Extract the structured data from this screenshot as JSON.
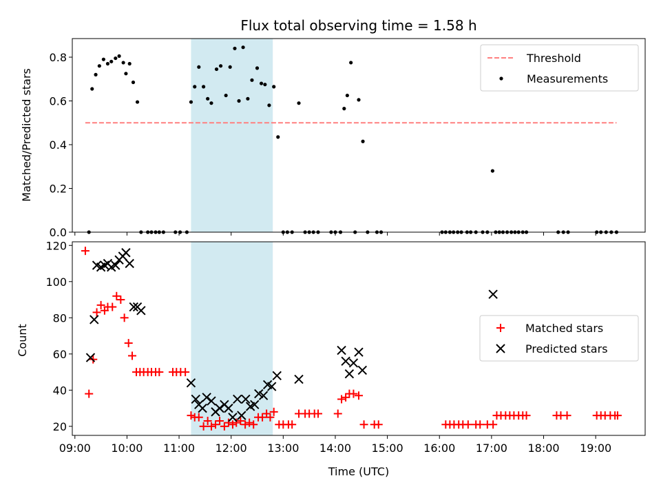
{
  "chart_data": [
    {
      "type": "scatter",
      "title": "Flux total observing time = 1.58 h",
      "xlabel": "",
      "ylabel": "Matched/Predicted stars",
      "xlim": [
        8.95,
        19.95
      ],
      "ylim": [
        0.0,
        0.885
      ],
      "yticks": [
        0.0,
        0.2,
        0.4,
        0.6,
        0.8
      ],
      "ytick_labels": [
        "0.0",
        "0.2",
        "0.4",
        "0.6",
        "0.8"
      ],
      "xticks": [
        9,
        10,
        11,
        12,
        13,
        14,
        15,
        16,
        17,
        18,
        19
      ],
      "shaded_span": {
        "x0": 11.23,
        "x1": 12.8,
        "color": "#add8e6"
      },
      "legend": {
        "placement": "upper right",
        "entries": [
          "Threshold",
          "Measurements"
        ]
      },
      "threshold": {
        "name": "Threshold",
        "y": 0.5,
        "x_range": [
          9.2,
          19.4
        ],
        "color": "#ff7f7f",
        "style": "dashed"
      },
      "series": [
        {
          "name": "Measurements",
          "color": "#000000",
          "marker": "dot",
          "x": [
            9.27,
            9.33,
            9.4,
            9.47,
            9.55,
            9.63,
            9.7,
            9.78,
            9.85,
            9.93,
            9.98,
            10.05,
            10.12,
            10.2,
            10.27,
            10.4,
            10.47,
            10.55,
            10.62,
            10.7,
            10.93,
            11.02,
            11.15,
            11.23,
            11.3,
            11.38,
            11.47,
            11.55,
            11.62,
            11.72,
            11.8,
            11.9,
            11.98,
            12.07,
            12.15,
            12.23,
            12.32,
            12.4,
            12.5,
            12.58,
            12.65,
            12.73,
            12.82,
            12.9,
            13.0,
            13.08,
            13.17,
            13.3,
            13.42,
            13.5,
            13.58,
            13.67,
            13.92,
            14.0,
            14.1,
            14.17,
            14.23,
            14.3,
            14.38,
            14.45,
            14.53,
            14.62,
            14.8,
            14.88,
            16.05,
            16.12,
            16.2,
            16.27,
            16.35,
            16.42,
            16.53,
            16.6,
            16.7,
            16.83,
            16.92,
            17.02,
            17.08,
            17.15,
            17.22,
            17.3,
            17.38,
            17.45,
            17.52,
            17.6,
            17.67,
            18.28,
            18.38,
            18.47,
            19.02,
            19.1,
            19.2,
            19.3,
            19.4
          ],
          "y": [
            0.0,
            0.655,
            0.72,
            0.76,
            0.79,
            0.77,
            0.78,
            0.795,
            0.805,
            0.775,
            0.725,
            0.77,
            0.685,
            0.595,
            0.0,
            0.0,
            0.0,
            0.0,
            0.0,
            0.0,
            0.0,
            0.0,
            0.0,
            0.595,
            0.665,
            0.755,
            0.665,
            0.61,
            0.59,
            0.745,
            0.76,
            0.625,
            0.755,
            0.84,
            0.6,
            0.845,
            0.61,
            0.695,
            0.75,
            0.68,
            0.675,
            0.58,
            0.665,
            0.435,
            0.0,
            0.0,
            0.0,
            0.59,
            0.0,
            0.0,
            0.0,
            0.0,
            0.0,
            0.0,
            0.0,
            0.565,
            0.625,
            0.775,
            0.0,
            0.605,
            0.415,
            0.0,
            0.0,
            0.0,
            0.0,
            0.0,
            0.0,
            0.0,
            0.0,
            0.0,
            0.0,
            0.0,
            0.0,
            0.0,
            0.0,
            0.28,
            0.0,
            0.0,
            0.0,
            0.0,
            0.0,
            0.0,
            0.0,
            0.0,
            0.0,
            0.0,
            0.0,
            0.0,
            0.0,
            0.0,
            0.0,
            0.0,
            0.0
          ]
        }
      ]
    },
    {
      "type": "scatter",
      "title": "",
      "xlabel": "Time (UTC)",
      "ylabel": "Count",
      "xlim": [
        8.95,
        19.95
      ],
      "ylim": [
        15,
        122
      ],
      "yticks": [
        20,
        40,
        60,
        80,
        100,
        120
      ],
      "ytick_labels": [
        "20",
        "40",
        "60",
        "80",
        "100",
        "120"
      ],
      "xticks": [
        9,
        10,
        11,
        12,
        13,
        14,
        15,
        16,
        17,
        18,
        19
      ],
      "xtick_labels": [
        "09:00",
        "10:00",
        "11:00",
        "12:00",
        "13:00",
        "14:00",
        "15:00",
        "16:00",
        "17:00",
        "18:00",
        "19:00"
      ],
      "shaded_span": {
        "x0": 11.23,
        "x1": 12.8,
        "color": "#add8e6"
      },
      "legend": {
        "placement": "center right",
        "entries": [
          "Matched stars",
          "Predicted stars"
        ]
      },
      "series": [
        {
          "name": "Matched stars",
          "color": "#ff0000",
          "marker": "plus",
          "x": [
            9.2,
            9.27,
            9.35,
            9.42,
            9.5,
            9.57,
            9.63,
            9.72,
            9.8,
            9.88,
            9.95,
            10.03,
            10.1,
            10.18,
            10.25,
            10.32,
            10.4,
            10.47,
            10.55,
            10.62,
            10.88,
            10.95,
            11.03,
            11.12,
            11.23,
            11.3,
            11.38,
            11.47,
            11.55,
            11.62,
            11.7,
            11.78,
            11.87,
            11.95,
            12.03,
            12.1,
            12.18,
            12.27,
            12.35,
            12.43,
            12.52,
            12.6,
            12.68,
            12.75,
            12.82,
            12.92,
            13.0,
            13.1,
            13.17,
            13.3,
            13.42,
            13.5,
            13.6,
            13.67,
            14.05,
            14.12,
            14.2,
            14.27,
            14.35,
            14.45,
            14.55,
            14.75,
            14.83,
            16.12,
            16.2,
            16.28,
            16.37,
            16.45,
            16.55,
            16.7,
            16.78,
            16.92,
            17.03,
            17.1,
            17.18,
            17.27,
            17.35,
            17.43,
            17.52,
            17.6,
            17.67,
            18.25,
            18.33,
            18.45,
            19.02,
            19.1,
            19.18,
            19.28,
            19.37,
            19.42
          ],
          "y": [
            117,
            38,
            57,
            83,
            87,
            84,
            86,
            86,
            92,
            90,
            80,
            66,
            59,
            50,
            50,
            50,
            50,
            50,
            50,
            50,
            50,
            50,
            50,
            50,
            26,
            25,
            25,
            20,
            23,
            20,
            21,
            23,
            20,
            22,
            21,
            22,
            23,
            21,
            22,
            21,
            25,
            25,
            27,
            25,
            28,
            21,
            21,
            21,
            21,
            27,
            27,
            27,
            27,
            27,
            27,
            35,
            36,
            38,
            38,
            37,
            21,
            21,
            21,
            21,
            21,
            21,
            21,
            21,
            21,
            21,
            21,
            21,
            21,
            26,
            26,
            26,
            26,
            26,
            26,
            26,
            26,
            26,
            26,
            26,
            26,
            26,
            26,
            26,
            26,
            26
          ]
        },
        {
          "name": "Predicted stars",
          "color": "#000000",
          "marker": "x",
          "x": [
            9.3,
            9.37,
            9.42,
            9.5,
            9.57,
            9.63,
            9.7,
            9.78,
            9.85,
            9.92,
            9.98,
            10.05,
            10.13,
            10.2,
            10.27,
            11.23,
            11.32,
            11.38,
            11.45,
            11.53,
            11.62,
            11.7,
            11.78,
            11.87,
            11.95,
            12.03,
            12.12,
            12.2,
            12.28,
            12.37,
            12.45,
            12.53,
            12.62,
            12.7,
            12.78,
            12.88,
            13.3,
            14.12,
            14.2,
            14.27,
            14.35,
            14.45,
            14.52,
            17.03
          ],
          "y": [
            58,
            79,
            109,
            108,
            109,
            110,
            108,
            109,
            112,
            114,
            116,
            110,
            86,
            86,
            84,
            44,
            35,
            32,
            30,
            36,
            34,
            28,
            30,
            32,
            30,
            25,
            35,
            26,
            35,
            31,
            32,
            38,
            37,
            43,
            42,
            48,
            46,
            62,
            56,
            49,
            55,
            61,
            51,
            93
          ]
        }
      ]
    }
  ]
}
